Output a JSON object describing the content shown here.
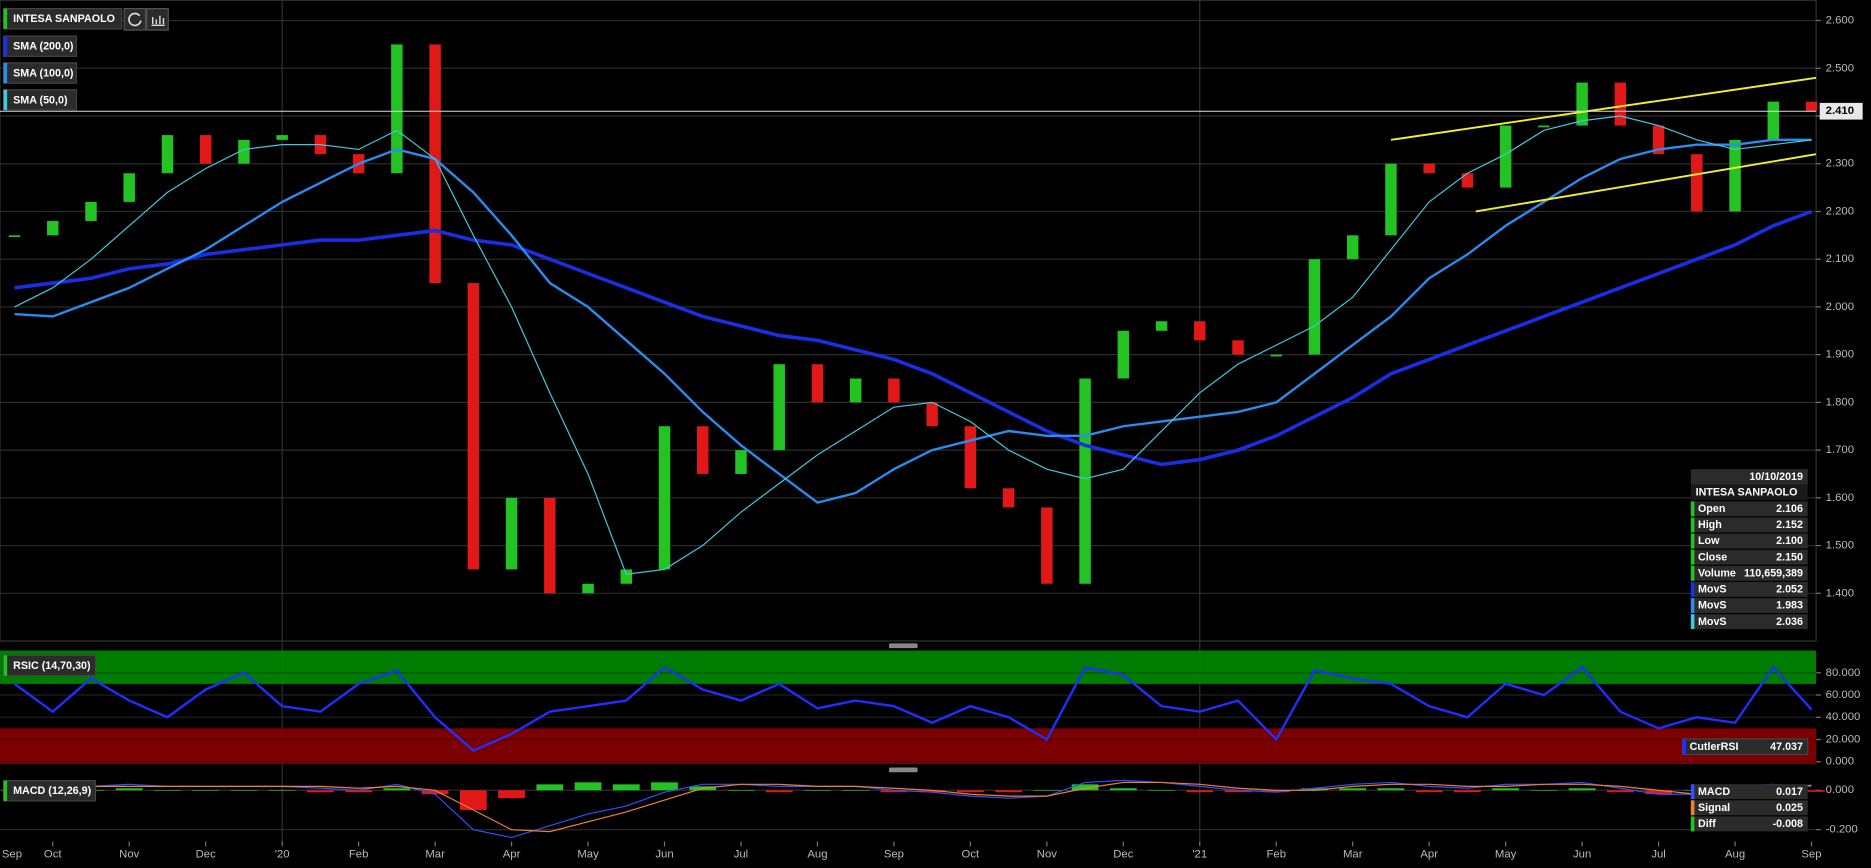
{
  "chart_data": [
    {
      "type": "candlestick",
      "title": "INTESA SANPAOLO",
      "x": [
        0.5,
        1,
        1.5,
        2,
        2.5,
        3,
        3.5,
        4,
        4.5,
        5,
        5.5,
        6,
        6.5,
        7,
        7.5,
        8,
        8.5,
        9,
        9.5,
        10,
        10.5,
        11,
        11.5,
        12,
        12.5,
        13,
        13.5,
        14,
        14.5,
        15,
        15.5,
        16,
        16.5,
        17,
        17.5,
        18,
        18.5,
        19,
        19.5,
        20,
        20.5,
        21,
        21.5,
        22,
        22.5,
        23,
        23.5,
        24
      ],
      "series": [
        {
          "name": "INTESA SANPAOLO",
          "color": "#22c322",
          "down_color": "#e01818",
          "values": [
            2.15,
            2.18,
            2.22,
            2.28,
            2.36,
            2.3,
            2.35,
            2.36,
            2.32,
            2.28,
            2.55,
            2.05,
            1.45,
            1.6,
            1.4,
            1.42,
            1.45,
            1.75,
            1.65,
            1.7,
            1.88,
            1.8,
            1.85,
            1.8,
            1.75,
            1.62,
            1.58,
            1.42,
            1.85,
            1.95,
            1.97,
            1.93,
            1.9,
            1.9,
            2.1,
            2.15,
            2.3,
            2.28,
            2.25,
            2.38,
            2.38,
            2.47,
            2.38,
            2.32,
            2.2,
            2.35,
            2.43,
            2.41
          ]
        },
        {
          "name": "SMA (200,0)",
          "color": "#1a2ee6",
          "values": [
            2.04,
            2.05,
            2.06,
            2.08,
            2.09,
            2.11,
            2.12,
            2.13,
            2.14,
            2.14,
            2.15,
            2.16,
            2.14,
            2.13,
            2.1,
            2.07,
            2.04,
            2.01,
            1.98,
            1.96,
            1.94,
            1.93,
            1.91,
            1.89,
            1.86,
            1.82,
            1.78,
            1.74,
            1.71,
            1.69,
            1.67,
            1.68,
            1.7,
            1.73,
            1.77,
            1.81,
            1.86,
            1.89,
            1.92,
            1.95,
            1.98,
            2.01,
            2.04,
            2.07,
            2.1,
            2.13,
            2.17,
            2.2
          ]
        },
        {
          "name": "SMA (100,0)",
          "color": "#2a8cf0",
          "values": [
            1.985,
            1.98,
            2.01,
            2.04,
            2.08,
            2.12,
            2.17,
            2.22,
            2.26,
            2.3,
            2.33,
            2.31,
            2.24,
            2.15,
            2.05,
            2.0,
            1.93,
            1.86,
            1.78,
            1.71,
            1.65,
            1.59,
            1.61,
            1.66,
            1.7,
            1.72,
            1.74,
            1.73,
            1.73,
            1.75,
            1.76,
            1.77,
            1.78,
            1.8,
            1.86,
            1.92,
            1.98,
            2.06,
            2.11,
            2.17,
            2.22,
            2.27,
            2.31,
            2.33,
            2.34,
            2.34,
            2.35,
            2.35
          ]
        },
        {
          "name": "SMA (50,0)",
          "color": "#40c8e0",
          "values": [
            2.0,
            2.04,
            2.1,
            2.17,
            2.24,
            2.29,
            2.33,
            2.34,
            2.34,
            2.33,
            2.37,
            2.31,
            2.15,
            2.0,
            1.82,
            1.65,
            1.44,
            1.45,
            1.5,
            1.57,
            1.63,
            1.69,
            1.74,
            1.79,
            1.8,
            1.76,
            1.7,
            1.66,
            1.64,
            1.66,
            1.74,
            1.82,
            1.88,
            1.92,
            1.96,
            2.02,
            2.12,
            2.22,
            2.28,
            2.32,
            2.37,
            2.39,
            2.4,
            2.38,
            2.35,
            2.33,
            2.34,
            2.35
          ]
        }
      ],
      "trendlines": [
        {
          "color": "#f0f030",
          "x": [
            18.5,
            24.06
          ],
          "y": [
            2.35,
            2.48
          ]
        },
        {
          "color": "#f0f030",
          "x": [
            19.61,
            24.06
          ],
          "y": [
            2.2,
            2.32
          ]
        }
      ],
      "current_price": 2.41,
      "current_price_label": "2.410",
      "ylim": [
        1.3,
        2.6425
      ],
      "yticks": [
        {
          "value": 1.4,
          "label": "1.400"
        },
        {
          "value": 1.5,
          "label": "1.500"
        },
        {
          "value": 1.6,
          "label": "1.600"
        },
        {
          "value": 1.7,
          "label": "1.700"
        },
        {
          "value": 1.8,
          "label": "1.800"
        },
        {
          "value": 1.9,
          "label": "1.900"
        },
        {
          "value": 2.0,
          "label": "2.000"
        },
        {
          "value": 2.1,
          "label": "2.100"
        },
        {
          "value": 2.2,
          "label": "2.200"
        },
        {
          "value": 2.3,
          "label": "2.300"
        },
        {
          "value": 2.4,
          "label": "2.400"
        },
        {
          "value": 2.5,
          "label": "2.500"
        },
        {
          "value": 2.6,
          "label": "2.600"
        }
      ],
      "grid": true,
      "info_panel": {
        "date": "10/10/2019",
        "rows": [
          [
            "Open",
            "2.106"
          ],
          [
            "High",
            "2.152"
          ],
          [
            "Low",
            "2.100"
          ],
          [
            "Close",
            "2.150"
          ],
          [
            "Volume",
            "110,659,389"
          ],
          [
            "MovS",
            "2.052"
          ],
          [
            "MovS",
            "1.983"
          ],
          [
            "MovS",
            "2.036"
          ]
        ]
      }
    },
    {
      "type": "line",
      "title": "RSIC (14,70,30)",
      "color": "#1f2fff",
      "x": [
        0.5,
        1,
        1.5,
        2,
        2.5,
        3,
        3.5,
        4,
        4.5,
        5,
        5.5,
        6,
        6.5,
        7,
        7.5,
        8,
        8.5,
        9,
        9.5,
        10,
        10.5,
        11,
        11.5,
        12,
        12.5,
        13,
        13.5,
        14,
        14.5,
        15,
        15.5,
        16,
        16.5,
        17,
        17.5,
        18,
        18.5,
        19,
        19.5,
        20,
        20.5,
        21,
        21.5,
        22,
        22.5,
        23,
        23.5,
        24
      ],
      "values": [
        70,
        45,
        75,
        55,
        40,
        65,
        80,
        50,
        45,
        70,
        82,
        40,
        10,
        25,
        45,
        50,
        55,
        85,
        65,
        55,
        70,
        48,
        55,
        50,
        35,
        50,
        40,
        20,
        85,
        78,
        50,
        45,
        55,
        20,
        82,
        75,
        70,
        50,
        40,
        70,
        60,
        85,
        45,
        30,
        40,
        35,
        85,
        47
      ],
      "zones": {
        "upper": 70,
        "lower": 30,
        "upper_color": "#008a00",
        "lower_color": "#8a0000"
      },
      "ylim": [
        -2,
        100
      ],
      "yticks": [
        {
          "value": 0,
          "label": "0.000"
        },
        {
          "value": 20,
          "label": "20.000"
        },
        {
          "value": 40,
          "label": "40.000"
        },
        {
          "value": 60,
          "label": "60.000"
        },
        {
          "value": 80,
          "label": "80.000"
        }
      ],
      "readout": {
        "label": "CutlerRSI",
        "value": "47.037"
      }
    },
    {
      "type": "macd",
      "title": "MACD (12,26,9)",
      "x": [
        0.5,
        1,
        1.5,
        2,
        2.5,
        3,
        3.5,
        4,
        4.5,
        5,
        5.5,
        6,
        6.5,
        7,
        7.5,
        8,
        8.5,
        9,
        9.5,
        10,
        10.5,
        11,
        11.5,
        12,
        12.5,
        13,
        13.5,
        14,
        14.5,
        15,
        15.5,
        16,
        16.5,
        17,
        17.5,
        18,
        18.5,
        19,
        19.5,
        20,
        20.5,
        21,
        21.5,
        22,
        22.5,
        23,
        23.5,
        24
      ],
      "series": [
        {
          "name": "MACD",
          "color": "#3050ff",
          "values": [
            0.01,
            0.02,
            0.02,
            0.03,
            0.02,
            0.02,
            0.02,
            0.02,
            0.01,
            0.0,
            0.03,
            -0.02,
            -0.2,
            -0.24,
            -0.18,
            -0.12,
            -0.08,
            -0.01,
            0.03,
            0.03,
            0.02,
            0.02,
            0.02,
            0.0,
            -0.01,
            -0.03,
            -0.04,
            -0.03,
            0.04,
            0.05,
            0.04,
            0.02,
            0.0,
            -0.01,
            0.01,
            0.03,
            0.04,
            0.02,
            0.01,
            0.03,
            0.03,
            0.04,
            0.01,
            -0.02,
            -0.02,
            0.02,
            0.03,
            0.017
          ]
        },
        {
          "name": "Signal",
          "color": "#f08030",
          "values": [
            0.01,
            0.01,
            0.02,
            0.02,
            0.02,
            0.02,
            0.02,
            0.02,
            0.02,
            0.01,
            0.02,
            0.0,
            -0.1,
            -0.2,
            -0.21,
            -0.16,
            -0.11,
            -0.05,
            0.01,
            0.03,
            0.03,
            0.02,
            0.02,
            0.01,
            0.0,
            -0.02,
            -0.03,
            -0.03,
            0.01,
            0.04,
            0.04,
            0.03,
            0.01,
            0.0,
            0.0,
            0.02,
            0.03,
            0.03,
            0.02,
            0.02,
            0.03,
            0.03,
            0.02,
            0.0,
            -0.02,
            0.0,
            0.02,
            0.025
          ]
        },
        {
          "name": "Diff",
          "color": "#22c322",
          "down_color": "#e01818",
          "values": [
            0,
            0.01,
            0,
            0.01,
            0,
            0,
            0,
            0,
            -0.01,
            -0.01,
            0.01,
            -0.02,
            -0.1,
            -0.04,
            0.03,
            0.04,
            0.03,
            0.04,
            0.02,
            0,
            -0.01,
            0,
            0,
            -0.01,
            -0.01,
            -0.01,
            -0.01,
            0,
            0.03,
            0.01,
            0,
            -0.01,
            -0.01,
            -0.01,
            0.01,
            0.01,
            0.01,
            -0.01,
            -0.01,
            0.01,
            0,
            0.01,
            -0.01,
            -0.02,
            0,
            0.02,
            0.01,
            -0.008
          ]
        }
      ],
      "readout_values": [
        "0.017",
        "0.025",
        "-0.008"
      ],
      "ylim": [
        -0.26,
        0.073
      ],
      "yticks": [
        {
          "value": -0.2,
          "label": "-0.200"
        },
        {
          "value": 0,
          "label": "0.000"
        }
      ],
      "xlim": [
        0.31,
        24.06
      ],
      "xticks": [
        {
          "value": 0,
          "label": "Sep"
        },
        {
          "value": 1,
          "label": "Oct"
        },
        {
          "value": 2,
          "label": "Nov"
        },
        {
          "value": 3,
          "label": "Dec"
        },
        {
          "value": 4,
          "label": "'20"
        },
        {
          "value": 5,
          "label": "Feb"
        },
        {
          "value": 6,
          "label": "Mar"
        },
        {
          "value": 7,
          "label": "Apr"
        },
        {
          "value": 8,
          "label": "May"
        },
        {
          "value": 9,
          "label": "Jun"
        },
        {
          "value": 10,
          "label": "Jul"
        },
        {
          "value": 11,
          "label": "Aug"
        },
        {
          "value": 12,
          "label": "Sep"
        },
        {
          "value": 13,
          "label": "Oct"
        },
        {
          "value": 14,
          "label": "Nov"
        },
        {
          "value": 15,
          "label": "Dec"
        },
        {
          "value": 16,
          "label": "'21"
        },
        {
          "value": 17,
          "label": "Feb"
        },
        {
          "value": 18,
          "label": "Mar"
        },
        {
          "value": 19,
          "label": "Apr"
        },
        {
          "value": 20,
          "label": "May"
        },
        {
          "value": 21,
          "label": "Jun"
        },
        {
          "value": 22,
          "label": "Jul"
        },
        {
          "value": 23,
          "label": "Aug"
        },
        {
          "value": 24,
          "label": "Sep"
        }
      ]
    }
  ]
}
